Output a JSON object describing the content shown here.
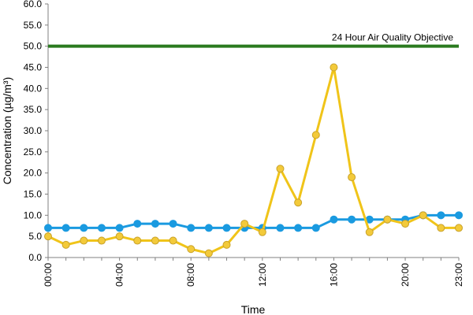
{
  "chart_data": {
    "type": "line",
    "xlabel": "Time",
    "ylabel": "Concentration (µg/m³)",
    "ylim": [
      0,
      60
    ],
    "yticks": [
      "0.0",
      "5.0",
      "10.0",
      "15.0",
      "20.0",
      "25.0",
      "30.0",
      "35.0",
      "40.0",
      "45.0",
      "50.0",
      "55.0",
      "60.0"
    ],
    "yticks_values": [
      0,
      5,
      10,
      15,
      20,
      25,
      30,
      35,
      40,
      45,
      50,
      55,
      60
    ],
    "x": [
      "00:00",
      "01:00",
      "02:00",
      "03:00",
      "04:00",
      "05:00",
      "06:00",
      "07:00",
      "08:00",
      "09:00",
      "10:00",
      "11:00",
      "12:00",
      "13:00",
      "14:00",
      "15:00",
      "16:00",
      "17:00",
      "18:00",
      "19:00",
      "20:00",
      "21:00",
      "22:00",
      "23:00"
    ],
    "xtick_labels": [
      "00:00",
      "04:00",
      "08:00",
      "12:00",
      "16:00",
      "20:00",
      "23:00"
    ],
    "xtick_indices": [
      0,
      4,
      8,
      12,
      16,
      20,
      23
    ],
    "grid": false,
    "legend": "none",
    "series": [
      {
        "color": "#1a9ae0",
        "values": [
          7,
          7,
          7,
          7,
          7,
          8,
          8,
          8,
          7,
          7,
          7,
          7,
          7,
          7,
          7,
          7,
          9,
          9,
          9,
          9,
          9,
          10,
          10,
          10
        ]
      },
      {
        "color": "#f0c419",
        "marker_fill": "#f3ca3a",
        "marker_stroke": "#c9a22a",
        "values": [
          5,
          3,
          4,
          4,
          5,
          4,
          4,
          4,
          2,
          1,
          3,
          8,
          6,
          21,
          13,
          29,
          45,
          19,
          6,
          9,
          8,
          10,
          7,
          7
        ]
      }
    ],
    "reference_line": {
      "label": "24 Hour Air Quality Objective",
      "value": 50,
      "color": "#2a7a1f"
    }
  }
}
